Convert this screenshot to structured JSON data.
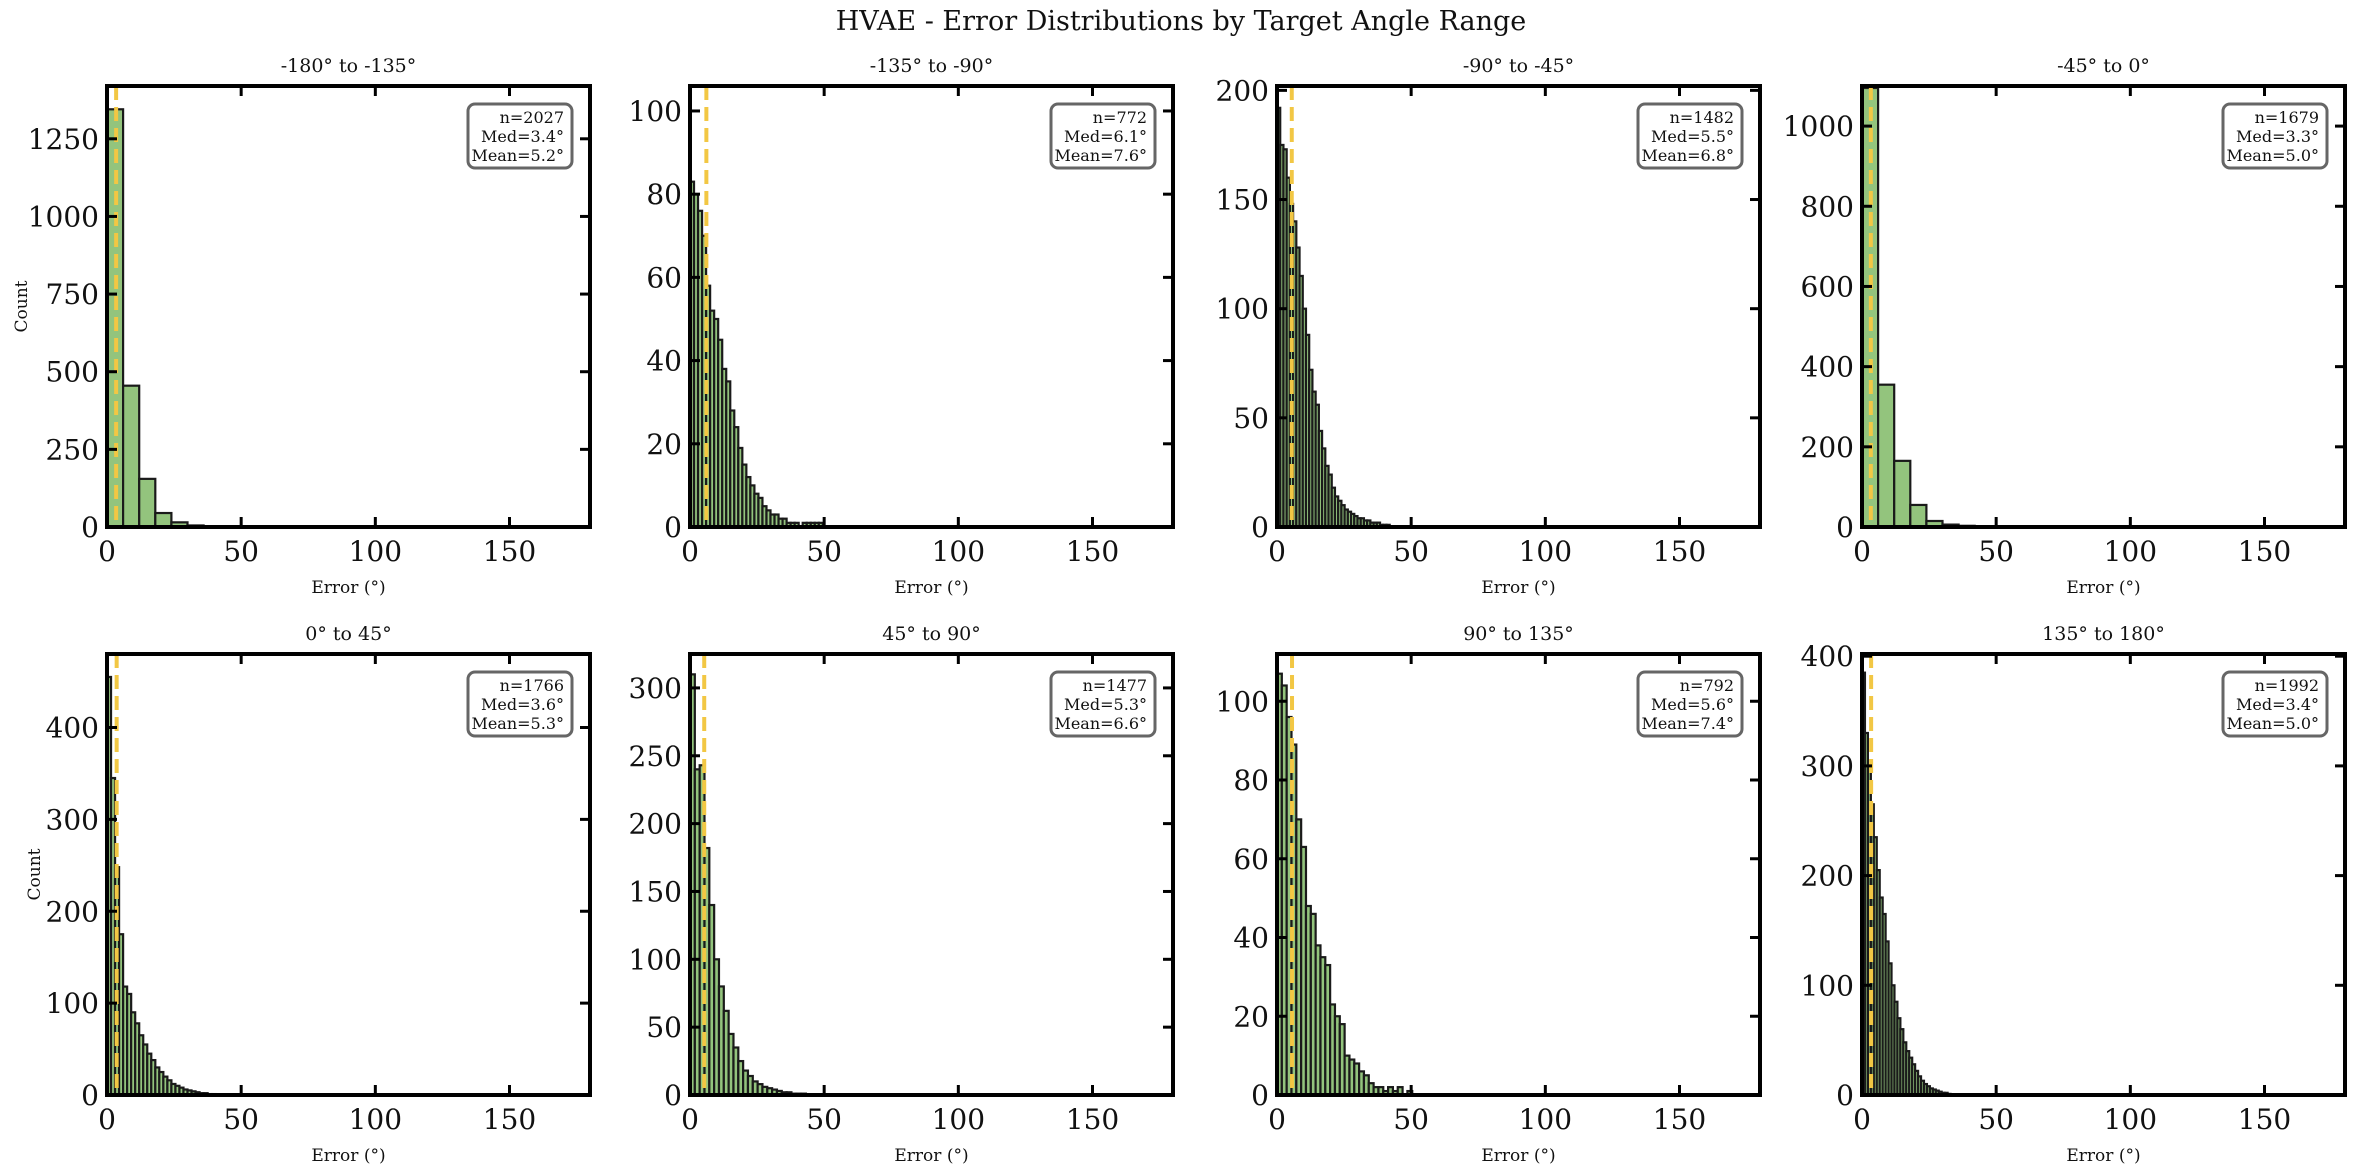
{
  "figure": {
    "title": "HVAE - Error Distributions by Target Angle Range"
  },
  "colors": {
    "bar_fill": "#93c47d",
    "bar_edge": "#1a1a1a",
    "median_line": "#f2c744",
    "axes": "#000000",
    "stats_box_edge": "#666666"
  },
  "chart_data": [
    {
      "type": "bar",
      "title": "-180° to -135°",
      "xlabel": "Error (°)",
      "ylabel": "Count",
      "xlim": [
        0,
        180
      ],
      "ylim": [
        0,
        1420
      ],
      "xticks": [
        0,
        50,
        100,
        150
      ],
      "yticks": [
        0,
        250,
        500,
        750,
        1000,
        1250
      ],
      "grid": false,
      "stats_box": "top-right",
      "stats": {
        "n": "n=2027",
        "median": "Med=3.4°",
        "mean": "Mean=5.2°"
      },
      "median_value": 3.4,
      "bin_width": 6,
      "bin_start": 0,
      "values": [
        1345,
        455,
        155,
        45,
        15,
        5,
        2
      ]
    },
    {
      "type": "bar",
      "title": "-135° to -90°",
      "xlabel": "Error (°)",
      "ylabel": "",
      "xlim": [
        0,
        180
      ],
      "ylim": [
        0,
        106
      ],
      "xticks": [
        0,
        50,
        100,
        150
      ],
      "yticks": [
        0,
        20,
        40,
        60,
        80,
        100
      ],
      "grid": false,
      "stats_box": "top-right",
      "stats": {
        "n": "n=772",
        "median": "Med=6.1°",
        "mean": "Mean=7.6°"
      },
      "median_value": 6.1,
      "bin_width": 1.5,
      "bin_start": 0,
      "values": [
        83,
        80,
        76,
        70,
        58,
        52,
        50,
        45,
        38,
        35,
        28,
        24,
        19,
        15,
        12,
        10,
        8,
        7,
        5,
        4,
        3,
        3,
        2,
        2,
        1,
        1,
        1,
        0,
        1,
        1,
        1,
        1,
        1
      ]
    },
    {
      "type": "bar",
      "title": "-90° to -45°",
      "xlabel": "Error (°)",
      "ylabel": "",
      "xlim": [
        0,
        180
      ],
      "ylim": [
        0,
        202
      ],
      "xticks": [
        0,
        50,
        100,
        150
      ],
      "yticks": [
        0,
        50,
        100,
        150,
        200
      ],
      "grid": false,
      "stats_box": "top-right",
      "stats": {
        "n": "n=1482",
        "median": "Med=5.5°",
        "mean": "Mean=6.8°"
      },
      "median_value": 5.5,
      "bin_width": 1.2,
      "bin_start": 0,
      "values": [
        192,
        175,
        173,
        160,
        148,
        140,
        128,
        115,
        100,
        88,
        72,
        62,
        56,
        44,
        36,
        28,
        24,
        18,
        14,
        12,
        10,
        8,
        7,
        6,
        5,
        4,
        4,
        3,
        3,
        2,
        2,
        2,
        1,
        1,
        1
      ]
    },
    {
      "type": "bar",
      "title": "-45° to 0°",
      "xlabel": "Error (°)",
      "ylabel": "",
      "xlim": [
        0,
        180
      ],
      "ylim": [
        0,
        1100
      ],
      "xticks": [
        0,
        50,
        100,
        150
      ],
      "yticks": [
        0,
        200,
        400,
        600,
        800,
        1000
      ],
      "grid": false,
      "stats_box": "top-right",
      "stats": {
        "n": "n=1679",
        "median": "Med=3.3°",
        "mean": "Mean=5.0°"
      },
      "median_value": 3.3,
      "bin_width": 6,
      "bin_start": 0,
      "values": [
        1095,
        355,
        165,
        55,
        15,
        6,
        3
      ]
    },
    {
      "type": "bar",
      "title": "0° to 45°",
      "xlabel": "Error (°)",
      "ylabel": "Count",
      "xlim": [
        0,
        180
      ],
      "ylim": [
        0,
        480
      ],
      "xticks": [
        0,
        50,
        100,
        150
      ],
      "yticks": [
        0,
        100,
        200,
        300,
        400
      ],
      "grid": false,
      "stats_box": "top-right",
      "stats": {
        "n": "n=1766",
        "median": "Med=3.6°",
        "mean": "Mean=5.3°"
      },
      "median_value": 3.6,
      "bin_width": 1.5,
      "bin_start": 0,
      "values": [
        455,
        345,
        248,
        175,
        118,
        110,
        90,
        78,
        65,
        55,
        45,
        38,
        30,
        25,
        20,
        16,
        12,
        10,
        8,
        6,
        5,
        4,
        3,
        2,
        2,
        1,
        1
      ]
    },
    {
      "type": "bar",
      "title": "45° to 90°",
      "xlabel": "Error (°)",
      "ylabel": "",
      "xlim": [
        0,
        180
      ],
      "ylim": [
        0,
        325
      ],
      "xticks": [
        0,
        50,
        100,
        150
      ],
      "yticks": [
        0,
        50,
        100,
        150,
        200,
        250,
        300
      ],
      "grid": false,
      "stats_box": "top-right",
      "stats": {
        "n": "n=1477",
        "median": "Med=5.3°",
        "mean": "Mean=6.6°"
      },
      "median_value": 5.3,
      "bin_width": 1.8,
      "bin_start": 0,
      "values": [
        310,
        240,
        243,
        182,
        140,
        100,
        80,
        62,
        45,
        35,
        25,
        18,
        14,
        10,
        8,
        6,
        5,
        4,
        3,
        2,
        2,
        1,
        1,
        1
      ]
    },
    {
      "type": "bar",
      "title": "90° to 135°",
      "xlabel": "Error (°)",
      "ylabel": "",
      "xlim": [
        0,
        180
      ],
      "ylim": [
        0,
        112
      ],
      "xticks": [
        0,
        50,
        100,
        150
      ],
      "yticks": [
        0,
        20,
        40,
        60,
        80,
        100
      ],
      "grid": false,
      "stats_box": "top-right",
      "stats": {
        "n": "n=792",
        "median": "Med=5.6°",
        "mean": "Mean=7.4°"
      },
      "median_value": 5.6,
      "bin_width": 1.8,
      "bin_start": 0,
      "values": [
        107,
        104,
        96,
        89,
        70,
        63,
        48,
        46,
        38,
        35,
        33,
        23,
        20,
        18,
        10,
        9,
        8,
        6,
        5,
        3,
        2,
        2,
        1,
        2,
        1,
        2,
        0,
        1
      ]
    },
    {
      "type": "bar",
      "title": "135° to 180°",
      "xlabel": "Error (°)",
      "ylabel": "",
      "xlim": [
        0,
        180
      ],
      "ylim": [
        0,
        402
      ],
      "xticks": [
        0,
        50,
        100,
        150
      ],
      "yticks": [
        0,
        100,
        200,
        300,
        400
      ],
      "grid": false,
      "stats_box": "top-right",
      "stats": {
        "n": "n=1992",
        "median": "Med=3.4°",
        "mean": "Mean=5.0°"
      },
      "median_value": 3.4,
      "bin_width": 1.1,
      "bin_start": 0,
      "values": [
        385,
        330,
        300,
        265,
        235,
        205,
        180,
        165,
        140,
        120,
        100,
        85,
        70,
        60,
        48,
        40,
        34,
        28,
        22,
        17,
        13,
        10,
        8,
        6,
        5,
        4,
        3,
        2,
        2,
        1
      ]
    }
  ]
}
